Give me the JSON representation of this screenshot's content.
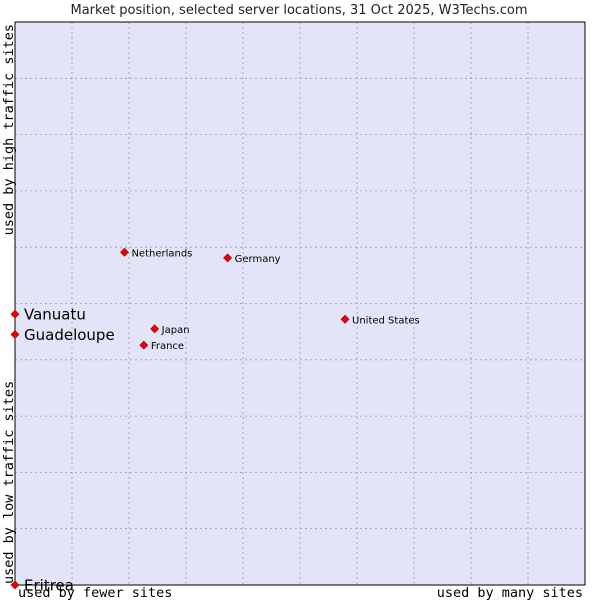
{
  "chart_data": {
    "type": "scatter",
    "title": "Market position, selected server locations, 31 Oct 2025, W3Techs.com",
    "xlabel_left": "used by fewer sites",
    "xlabel_right": "used by many sites",
    "ylabel_bottom": "used by low traffic sites",
    "ylabel_top": "used by high traffic sites",
    "xlim": [
      0,
      100
    ],
    "ylim": [
      0,
      100
    ],
    "grid": true,
    "points": [
      {
        "name": "Netherlands",
        "x": 19.2,
        "y": 59.1,
        "size": "small"
      },
      {
        "name": "Germany",
        "x": 37.3,
        "y": 58.1,
        "size": "small"
      },
      {
        "name": "United States",
        "x": 57.9,
        "y": 47.2,
        "size": "small"
      },
      {
        "name": "Japan",
        "x": 24.5,
        "y": 45.5,
        "size": "small"
      },
      {
        "name": "France",
        "x": 22.6,
        "y": 42.6,
        "size": "small"
      },
      {
        "name": "Vanuatu",
        "x": 0,
        "y": 48.1,
        "size": "large"
      },
      {
        "name": "Guadeloupe",
        "x": 0,
        "y": 44.5,
        "size": "large"
      },
      {
        "name": "Eritrea",
        "x": 0,
        "y": 0,
        "size": "large"
      }
    ]
  },
  "colors": {
    "plot_background": "#e4e4f8",
    "grid": "#9a9ab0",
    "marker_fill": "#ee0000",
    "marker_stroke": "#990000"
  }
}
